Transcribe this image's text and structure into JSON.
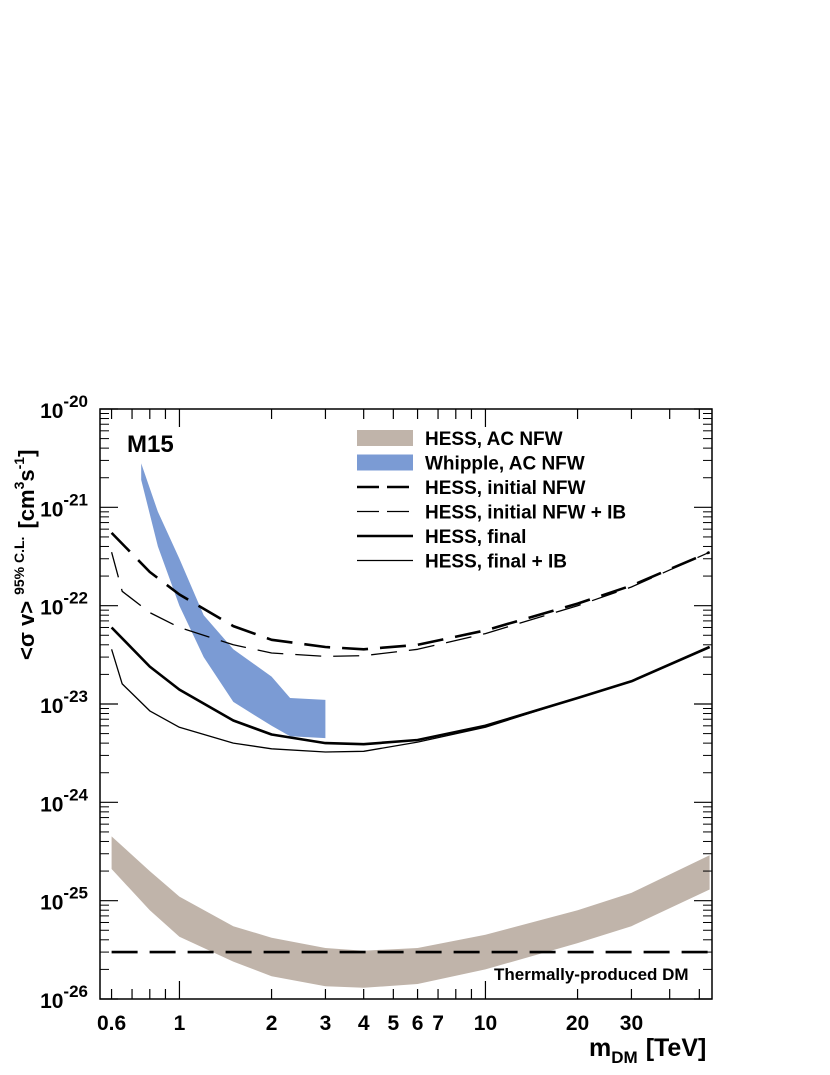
{
  "chart_data": {
    "type": "line",
    "xscale": "log",
    "yscale": "log",
    "xlim": [
      0.55,
      55
    ],
    "ylim": [
      1e-26,
      1e-20
    ],
    "xlabel_main": "m",
    "xlabel_sub": "DM",
    "xlabel_unit": "[TeV]",
    "ylabel_main": "<σ v>",
    "ylabel_sup": "95% C.L.",
    "ylabel_unit_a": "[cm",
    "ylabel_unit_sup_a": "3",
    "ylabel_unit_b": "s",
    "ylabel_unit_sup_b": "-1",
    "ylabel_unit_c": "]",
    "annotation": "M15",
    "x_ticks": [
      {
        "v": 0.6,
        "label": "0.6"
      },
      {
        "v": 1,
        "label": "1"
      },
      {
        "v": 2,
        "label": "2"
      },
      {
        "v": 3,
        "label": "3"
      },
      {
        "v": 4,
        "label": "4"
      },
      {
        "v": 5,
        "label": "5"
      },
      {
        "v": 6,
        "label": "6"
      },
      {
        "v": 7,
        "label": "7"
      },
      {
        "v": 10,
        "label": "10"
      },
      {
        "v": 20,
        "label": "20"
      },
      {
        "v": 30,
        "label": "30"
      }
    ],
    "y_ticks": [
      {
        "exp": -26,
        "base": "10",
        "sup": "-26"
      },
      {
        "exp": -25,
        "base": "10",
        "sup": "-25"
      },
      {
        "exp": -24,
        "base": "10",
        "sup": "-24"
      },
      {
        "exp": -23,
        "base": "10",
        "sup": "-23"
      },
      {
        "exp": -22,
        "base": "10",
        "sup": "-22"
      },
      {
        "exp": -21,
        "base": "10",
        "sup": "-21"
      },
      {
        "exp": -20,
        "base": "10",
        "sup": "-20"
      }
    ],
    "bands": [
      {
        "name": "HESS, AC NFW",
        "color": "#c0b4aa",
        "x": [
          0.6,
          0.8,
          1.0,
          1.5,
          2.0,
          3.0,
          4.0,
          6.0,
          10.0,
          20.0,
          30.0,
          54.0
        ],
        "upper": [
          4.5e-25,
          2e-25,
          1.1e-25,
          5.5e-26,
          4.2e-26,
          3.3e-26,
          3.1e-26,
          3.3e-26,
          4.5e-26,
          8e-26,
          1.2e-25,
          2.9e-25
        ],
        "lower": [
          2.1e-25,
          8e-26,
          4.3e-26,
          2.4e-26,
          1.7e-26,
          1.35e-26,
          1.3e-26,
          1.42e-26,
          2e-26,
          3.7e-26,
          5.5e-26,
          1.3e-25
        ]
      },
      {
        "name": "Whipple, AC NFW",
        "color": "#7b9bd4",
        "x": [
          0.75,
          0.85,
          1.0,
          1.2,
          1.5,
          2.0,
          2.3,
          3.0
        ],
        "upper": [
          2.8e-21,
          9e-22,
          3e-22,
          8e-23,
          3.6e-23,
          1.9e-23,
          1.15e-23,
          1.1e-23
        ],
        "lower": [
          1.9e-21,
          4e-22,
          1e-22,
          3e-23,
          1.05e-23,
          6e-24,
          4.7e-24,
          4.5e-24
        ]
      }
    ],
    "series": [
      {
        "name": "HESS, initial NFW",
        "style": "long-dash-thick",
        "x": [
          0.6,
          0.8,
          1.0,
          1.5,
          2.0,
          3.0,
          4.0,
          6.0,
          10.0,
          20.0,
          30.0,
          54.0
        ],
        "y": [
          5.5e-22,
          2.2e-22,
          1.3e-22,
          6.2e-23,
          4.5e-23,
          3.8e-23,
          3.6e-23,
          4e-23,
          5.6e-23,
          1.05e-22,
          1.6e-22,
          3.5e-22
        ]
      },
      {
        "name": "HESS, initial NFW + IB",
        "style": "long-dash-thin",
        "x": [
          0.6,
          0.65,
          0.8,
          1.0,
          1.5,
          2.0,
          3.0,
          4.0,
          6.0,
          10.0,
          20.0,
          30.0,
          54.0
        ],
        "y": [
          3.5e-22,
          1.4e-22,
          8.5e-23,
          6e-23,
          4e-23,
          3.3e-23,
          3.05e-23,
          3.1e-23,
          3.6e-23,
          5.2e-23,
          1e-22,
          1.55e-22,
          3.5e-22
        ]
      },
      {
        "name": "HESS, final",
        "style": "solid-thick",
        "x": [
          0.6,
          0.8,
          1.0,
          1.5,
          2.0,
          3.0,
          4.0,
          6.0,
          10.0,
          20.0,
          30.0,
          54.0
        ],
        "y": [
          6e-23,
          2.4e-23,
          1.4e-23,
          6.8e-24,
          4.9e-24,
          4e-24,
          3.9e-24,
          4.3e-24,
          6e-24,
          1.15e-23,
          1.7e-23,
          3.8e-23
        ]
      },
      {
        "name": "HESS, final + IB",
        "style": "solid-thin",
        "x": [
          0.6,
          0.65,
          0.8,
          1.0,
          1.5,
          2.0,
          3.0,
          4.0,
          6.0,
          10.0,
          20.0,
          30.0,
          54.0
        ],
        "y": [
          3.6e-23,
          1.6e-23,
          8.5e-24,
          5.8e-24,
          4e-24,
          3.5e-24,
          3.25e-24,
          3.3e-24,
          4.1e-24,
          5.8e-24,
          1.15e-23,
          1.7e-23,
          3.8e-23
        ]
      },
      {
        "name": "",
        "style": "long-dash-thick",
        "x": [
          0.6,
          54.0
        ],
        "y": [
          3e-26,
          3e-26
        ],
        "label": "Thermally-produced DM"
      }
    ],
    "legend": {
      "position": "top-right",
      "entries": [
        {
          "label": "HESS, AC NFW",
          "style": "band",
          "color": "#c0b4aa"
        },
        {
          "label": "Whipple, AC NFW",
          "style": "band",
          "color": "#7b9bd4"
        },
        {
          "label": "HESS, initial NFW",
          "style": "long-dash-thick"
        },
        {
          "label": "HESS, initial NFW + IB",
          "style": "long-dash-thin"
        },
        {
          "label": "HESS, final",
          "style": "solid-thick"
        },
        {
          "label": "HESS, final + IB",
          "style": "solid-thin"
        }
      ]
    },
    "grid": false
  }
}
